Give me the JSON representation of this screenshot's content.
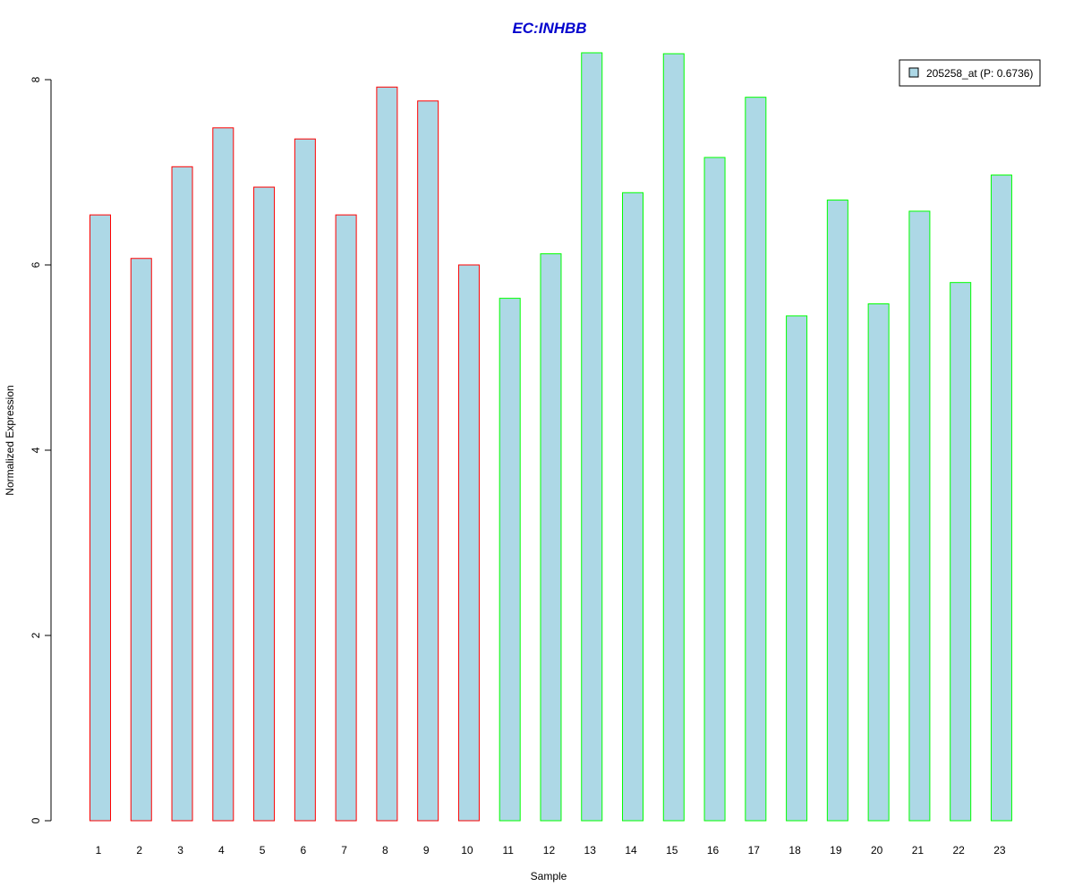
{
  "chart_data": {
    "type": "bar",
    "title": "EC:INHBB",
    "xlabel": "Sample",
    "ylabel": "Normalized Expression",
    "categories": [
      "1",
      "2",
      "3",
      "4",
      "5",
      "6",
      "7",
      "8",
      "9",
      "10",
      "11",
      "12",
      "13",
      "14",
      "15",
      "16",
      "17",
      "18",
      "19",
      "20",
      "21",
      "22",
      "23"
    ],
    "series": [
      {
        "name": "205258_at (P: 0.6736)",
        "values": [
          6.54,
          6.07,
          7.06,
          7.48,
          6.84,
          7.36,
          6.54,
          7.92,
          7.77,
          6.0,
          5.64,
          6.12,
          8.29,
          6.78,
          8.28,
          7.16,
          7.81,
          5.45,
          6.7,
          5.58,
          6.58,
          5.81,
          6.97
        ]
      }
    ],
    "group_outline": [
      "red",
      "red",
      "red",
      "red",
      "red",
      "red",
      "red",
      "red",
      "red",
      "red",
      "green",
      "green",
      "green",
      "green",
      "green",
      "green",
      "green",
      "green",
      "green",
      "green",
      "green",
      "green",
      "green"
    ],
    "ylim": [
      0,
      8.3
    ],
    "yticks": [
      "0",
      "2",
      "4",
      "6",
      "8"
    ],
    "grid": false,
    "legend_position": "top-right",
    "colors": {
      "bar_fill": "#add8e6",
      "outline_red": "#ff0000",
      "outline_green": "#00ff00",
      "title": "#0000cd"
    }
  }
}
